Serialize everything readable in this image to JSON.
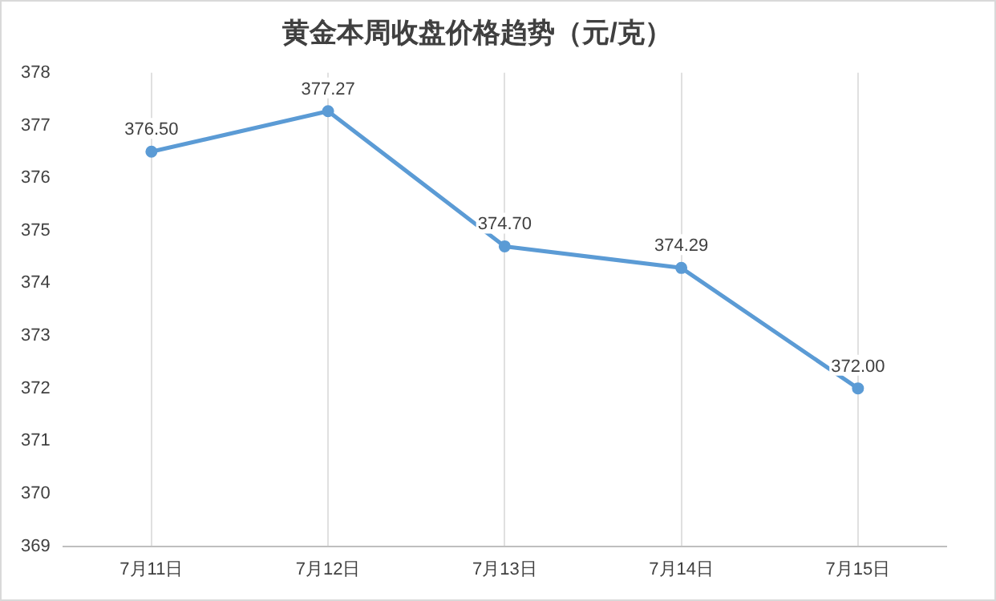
{
  "chart_data": {
    "type": "line",
    "title": "黄金本周收盘价格趋势（元/克）",
    "categories": [
      "7月11日",
      "7月12日",
      "7月13日",
      "7月14日",
      "7月15日"
    ],
    "series": [
      {
        "color": "#5b9bd5",
        "values": [
          376.5,
          377.27,
          374.7,
          374.29,
          372.0
        ],
        "value_labels": [
          "376.50",
          "377.27",
          "374.70",
          "374.29",
          "372.00"
        ]
      }
    ],
    "ylim": [
      369,
      378
    ],
    "yticks": [
      369,
      370,
      371,
      372,
      373,
      374,
      375,
      376,
      377,
      378
    ],
    "grid": "x",
    "legend": false,
    "marker": "circle",
    "line_style": "solid"
  }
}
